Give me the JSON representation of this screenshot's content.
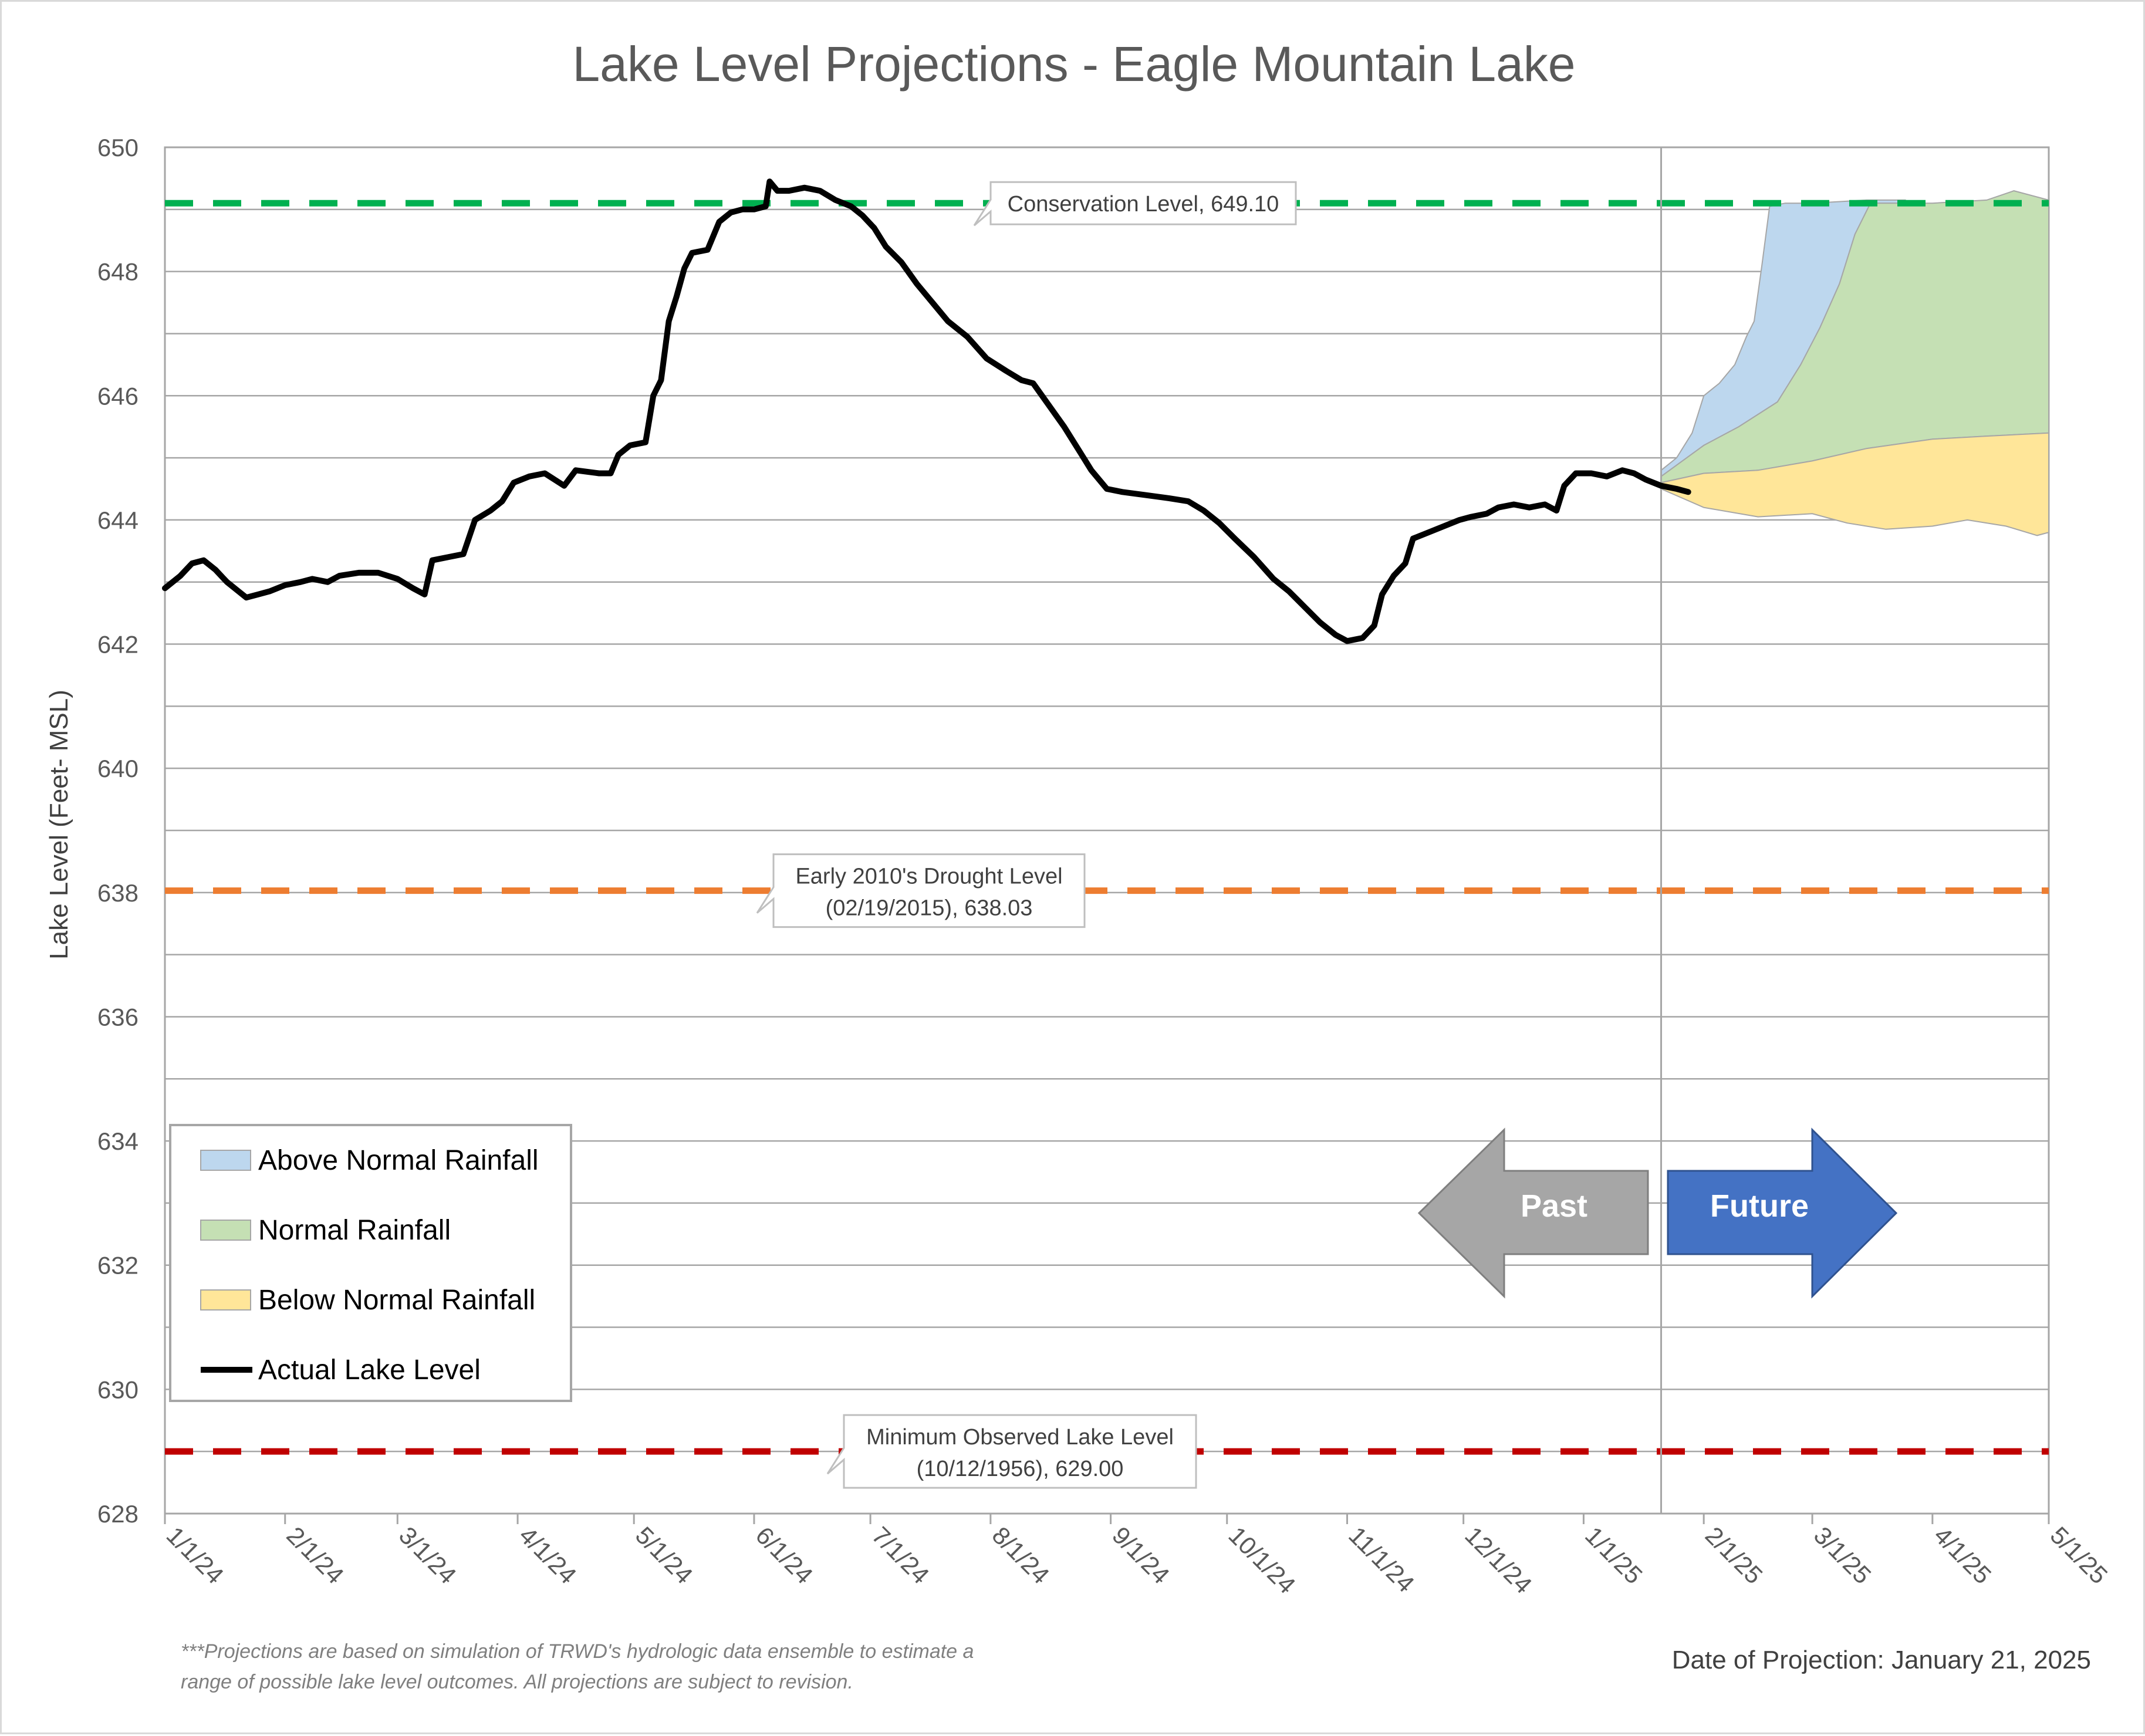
{
  "chart_data": {
    "type": "area",
    "title": "Lake Level Projections - Eagle Mountain Lake",
    "ylabel": "Lake Level (Feet- MSL)",
    "xlabel": "",
    "ylim": [
      628,
      650
    ],
    "yticks": [
      628,
      630,
      632,
      634,
      636,
      638,
      640,
      642,
      644,
      646,
      648,
      650
    ],
    "xlim": [
      "2024-01-01",
      "2025-05-01"
    ],
    "xticks": [
      {
        "date": "2024-01-01",
        "label": "1/1/24"
      },
      {
        "date": "2024-02-01",
        "label": "2/1/24"
      },
      {
        "date": "2024-03-01",
        "label": "3/1/24"
      },
      {
        "date": "2024-04-01",
        "label": "4/1/24"
      },
      {
        "date": "2024-05-01",
        "label": "5/1/24"
      },
      {
        "date": "2024-06-01",
        "label": "6/1/24"
      },
      {
        "date": "2024-07-01",
        "label": "7/1/24"
      },
      {
        "date": "2024-08-01",
        "label": "8/1/24"
      },
      {
        "date": "2024-09-01",
        "label": "9/1/24"
      },
      {
        "date": "2024-10-01",
        "label": "10/1/24"
      },
      {
        "date": "2024-11-01",
        "label": "11/1/24"
      },
      {
        "date": "2024-12-01",
        "label": "12/1/24"
      },
      {
        "date": "2025-01-01",
        "label": "1/1/25"
      },
      {
        "date": "2025-02-01",
        "label": "2/1/25"
      },
      {
        "date": "2025-03-01",
        "label": "3/1/25"
      },
      {
        "date": "2025-04-01",
        "label": "4/1/25"
      },
      {
        "date": "2025-05-01",
        "label": "5/1/25"
      }
    ],
    "grid": true,
    "divider_date": "2025-01-21",
    "reference_lines": [
      {
        "value": 649.1,
        "color": "#00b050",
        "label_lines": [
          "Conservation Level, 649.10"
        ]
      },
      {
        "value": 638.03,
        "color": "#ed7d31",
        "label_lines": [
          "Early 2010's Drought Level",
          "(02/19/2015), 638.03"
        ]
      },
      {
        "value": 629.0,
        "color": "#c00000",
        "label_lines": [
          "Minimum Observed Lake Level",
          "(10/12/1956), 629.00"
        ]
      }
    ],
    "series": [
      {
        "name": "Actual Lake Level",
        "kind": "line",
        "color": "#000000",
        "points": [
          [
            "2024-01-01",
            642.9
          ],
          [
            "2024-01-05",
            643.1
          ],
          [
            "2024-01-08",
            643.3
          ],
          [
            "2024-01-11",
            643.35
          ],
          [
            "2024-01-14",
            643.2
          ],
          [
            "2024-01-17",
            643.0
          ],
          [
            "2024-01-20",
            642.85
          ],
          [
            "2024-01-22",
            642.75
          ],
          [
            "2024-01-25",
            642.8
          ],
          [
            "2024-01-28",
            642.85
          ],
          [
            "2024-02-01",
            642.95
          ],
          [
            "2024-02-05",
            643.0
          ],
          [
            "2024-02-08",
            643.05
          ],
          [
            "2024-02-12",
            643.0
          ],
          [
            "2024-02-15",
            643.1
          ],
          [
            "2024-02-20",
            643.15
          ],
          [
            "2024-02-25",
            643.15
          ],
          [
            "2024-03-01",
            643.05
          ],
          [
            "2024-03-05",
            642.9
          ],
          [
            "2024-03-08",
            642.8
          ],
          [
            "2024-03-10",
            643.35
          ],
          [
            "2024-03-14",
            643.4
          ],
          [
            "2024-03-18",
            643.45
          ],
          [
            "2024-03-21",
            644.0
          ],
          [
            "2024-03-25",
            644.15
          ],
          [
            "2024-03-28",
            644.3
          ],
          [
            "2024-03-31",
            644.6
          ],
          [
            "2024-04-04",
            644.7
          ],
          [
            "2024-04-08",
            644.75
          ],
          [
            "2024-04-13",
            644.55
          ],
          [
            "2024-04-16",
            644.8
          ],
          [
            "2024-04-22",
            644.75
          ],
          [
            "2024-04-25",
            644.75
          ],
          [
            "2024-04-27",
            645.05
          ],
          [
            "2024-04-30",
            645.2
          ],
          [
            "2024-05-04",
            645.25
          ],
          [
            "2024-05-06",
            646.0
          ],
          [
            "2024-05-08",
            646.25
          ],
          [
            "2024-05-10",
            647.2
          ],
          [
            "2024-05-12",
            647.6
          ],
          [
            "2024-05-14",
            648.05
          ],
          [
            "2024-05-16",
            648.3
          ],
          [
            "2024-05-20",
            648.35
          ],
          [
            "2024-05-23",
            648.8
          ],
          [
            "2024-05-26",
            648.95
          ],
          [
            "2024-05-29",
            649.0
          ],
          [
            "2024-06-01",
            649.0
          ],
          [
            "2024-06-04",
            649.05
          ],
          [
            "2024-06-05",
            649.45
          ],
          [
            "2024-06-07",
            649.3
          ],
          [
            "2024-06-10",
            649.3
          ],
          [
            "2024-06-14",
            649.35
          ],
          [
            "2024-06-18",
            649.3
          ],
          [
            "2024-06-22",
            649.15
          ],
          [
            "2024-06-26",
            649.05
          ],
          [
            "2024-06-29",
            648.9
          ],
          [
            "2024-07-02",
            648.7
          ],
          [
            "2024-07-05",
            648.4
          ],
          [
            "2024-07-09",
            648.15
          ],
          [
            "2024-07-13",
            647.8
          ],
          [
            "2024-07-17",
            647.5
          ],
          [
            "2024-07-21",
            647.2
          ],
          [
            "2024-07-26",
            646.95
          ],
          [
            "2024-07-31",
            646.6
          ],
          [
            "2024-08-05",
            646.4
          ],
          [
            "2024-08-09",
            646.25
          ],
          [
            "2024-08-12",
            646.2
          ],
          [
            "2024-08-16",
            645.85
          ],
          [
            "2024-08-20",
            645.5
          ],
          [
            "2024-08-24",
            645.1
          ],
          [
            "2024-08-27",
            644.8
          ],
          [
            "2024-08-31",
            644.5
          ],
          [
            "2024-09-04",
            644.45
          ],
          [
            "2024-09-10",
            644.4
          ],
          [
            "2024-09-16",
            644.35
          ],
          [
            "2024-09-21",
            644.3
          ],
          [
            "2024-09-25",
            644.15
          ],
          [
            "2024-09-29",
            643.95
          ],
          [
            "2024-10-03",
            643.7
          ],
          [
            "2024-10-08",
            643.4
          ],
          [
            "2024-10-13",
            643.05
          ],
          [
            "2024-10-17",
            642.85
          ],
          [
            "2024-10-21",
            642.6
          ],
          [
            "2024-10-25",
            642.35
          ],
          [
            "2024-10-29",
            642.15
          ],
          [
            "2024-11-01",
            642.05
          ],
          [
            "2024-11-05",
            642.1
          ],
          [
            "2024-11-08",
            642.3
          ],
          [
            "2024-11-10",
            642.8
          ],
          [
            "2024-11-13",
            643.1
          ],
          [
            "2024-11-16",
            643.3
          ],
          [
            "2024-11-18",
            643.7
          ],
          [
            "2024-11-22",
            643.8
          ],
          [
            "2024-11-26",
            643.9
          ],
          [
            "2024-11-30",
            644.0
          ],
          [
            "2024-12-03",
            644.05
          ],
          [
            "2024-12-07",
            644.1
          ],
          [
            "2024-12-10",
            644.2
          ],
          [
            "2024-12-14",
            644.25
          ],
          [
            "2024-12-18",
            644.2
          ],
          [
            "2024-12-22",
            644.25
          ],
          [
            "2024-12-25",
            644.15
          ],
          [
            "2024-12-27",
            644.55
          ],
          [
            "2024-12-30",
            644.75
          ],
          [
            "2025-01-03",
            644.75
          ],
          [
            "2025-01-07",
            644.7
          ],
          [
            "2025-01-11",
            644.8
          ],
          [
            "2025-01-14",
            644.75
          ],
          [
            "2025-01-17",
            644.65
          ],
          [
            "2025-01-21",
            644.55
          ],
          [
            "2025-01-25",
            644.5
          ],
          [
            "2025-01-28",
            644.45
          ]
        ]
      },
      {
        "name": "Above Normal Rainfall",
        "kind": "band",
        "color": "#bdd7ee",
        "upper": [
          [
            "2025-01-21",
            644.8
          ],
          [
            "2025-01-25",
            645.0
          ],
          [
            "2025-01-29",
            645.4
          ],
          [
            "2025-02-01",
            646.0
          ],
          [
            "2025-02-05",
            646.2
          ],
          [
            "2025-02-09",
            646.5
          ],
          [
            "2025-02-12",
            646.95
          ],
          [
            "2025-02-14",
            647.2
          ],
          [
            "2025-02-16",
            648.1
          ],
          [
            "2025-02-18",
            649.05
          ],
          [
            "2025-02-22",
            649.1
          ],
          [
            "2025-03-01",
            649.1
          ],
          [
            "2025-03-15",
            649.15
          ],
          [
            "2025-03-25",
            649.15
          ]
        ],
        "lower": [
          [
            "2025-01-21",
            644.7
          ],
          [
            "2025-02-01",
            645.2
          ],
          [
            "2025-02-10",
            645.5
          ],
          [
            "2025-02-20",
            645.9
          ],
          [
            "2025-02-26",
            646.5
          ],
          [
            "2025-03-03",
            647.1
          ],
          [
            "2025-03-08",
            647.8
          ],
          [
            "2025-03-12",
            648.6
          ],
          [
            "2025-03-16",
            649.1
          ],
          [
            "2025-03-25",
            649.1
          ]
        ]
      },
      {
        "name": "Normal Rainfall",
        "kind": "band",
        "color": "#c5e0b4",
        "upper": [
          [
            "2025-01-21",
            644.7
          ],
          [
            "2025-02-01",
            645.2
          ],
          [
            "2025-02-10",
            645.5
          ],
          [
            "2025-02-20",
            645.9
          ],
          [
            "2025-02-26",
            646.5
          ],
          [
            "2025-03-03",
            647.1
          ],
          [
            "2025-03-08",
            647.8
          ],
          [
            "2025-03-12",
            648.6
          ],
          [
            "2025-03-16",
            649.1
          ],
          [
            "2025-04-01",
            649.1
          ],
          [
            "2025-04-15",
            649.15
          ],
          [
            "2025-04-22",
            649.3
          ],
          [
            "2025-05-01",
            649.15
          ]
        ],
        "lower": [
          [
            "2025-01-21",
            644.6
          ],
          [
            "2025-02-01",
            644.75
          ],
          [
            "2025-02-15",
            644.8
          ],
          [
            "2025-03-01",
            644.95
          ],
          [
            "2025-03-15",
            645.15
          ],
          [
            "2025-04-01",
            645.3
          ],
          [
            "2025-04-15",
            645.35
          ],
          [
            "2025-05-01",
            645.4
          ]
        ]
      },
      {
        "name": "Below Normal Rainfall",
        "kind": "band",
        "color": "#ffe699",
        "upper": [
          [
            "2025-01-21",
            644.6
          ],
          [
            "2025-02-01",
            644.75
          ],
          [
            "2025-02-15",
            644.8
          ],
          [
            "2025-03-01",
            644.95
          ],
          [
            "2025-03-15",
            645.15
          ],
          [
            "2025-04-01",
            645.3
          ],
          [
            "2025-04-15",
            645.35
          ],
          [
            "2025-05-01",
            645.4
          ]
        ],
        "lower": [
          [
            "2025-01-21",
            644.5
          ],
          [
            "2025-02-01",
            644.2
          ],
          [
            "2025-02-15",
            644.05
          ],
          [
            "2025-03-01",
            644.1
          ],
          [
            "2025-03-10",
            643.95
          ],
          [
            "2025-03-20",
            643.85
          ],
          [
            "2025-04-01",
            643.9
          ],
          [
            "2025-04-10",
            644.0
          ],
          [
            "2025-04-20",
            643.9
          ],
          [
            "2025-04-28",
            643.75
          ],
          [
            "2025-05-01",
            643.8
          ]
        ]
      }
    ],
    "legend": {
      "placement": "bottom-left",
      "entries": [
        "Above Normal Rainfall",
        "Normal Rainfall",
        "Below Normal Rainfall",
        "Actual Lake Level"
      ]
    },
    "arrows": {
      "past": "Past",
      "future": "Future",
      "past_color": "#a6a6a6",
      "future_color": "#4472c4"
    },
    "footnote_lines": [
      "***Projections are based on simulation of TRWD's hydrologic data ensemble to estimate a",
      "range of possible lake level outcomes.  All projections are subject to revision."
    ],
    "projection_date_text": "Date of Projection: January 21, 2025"
  }
}
